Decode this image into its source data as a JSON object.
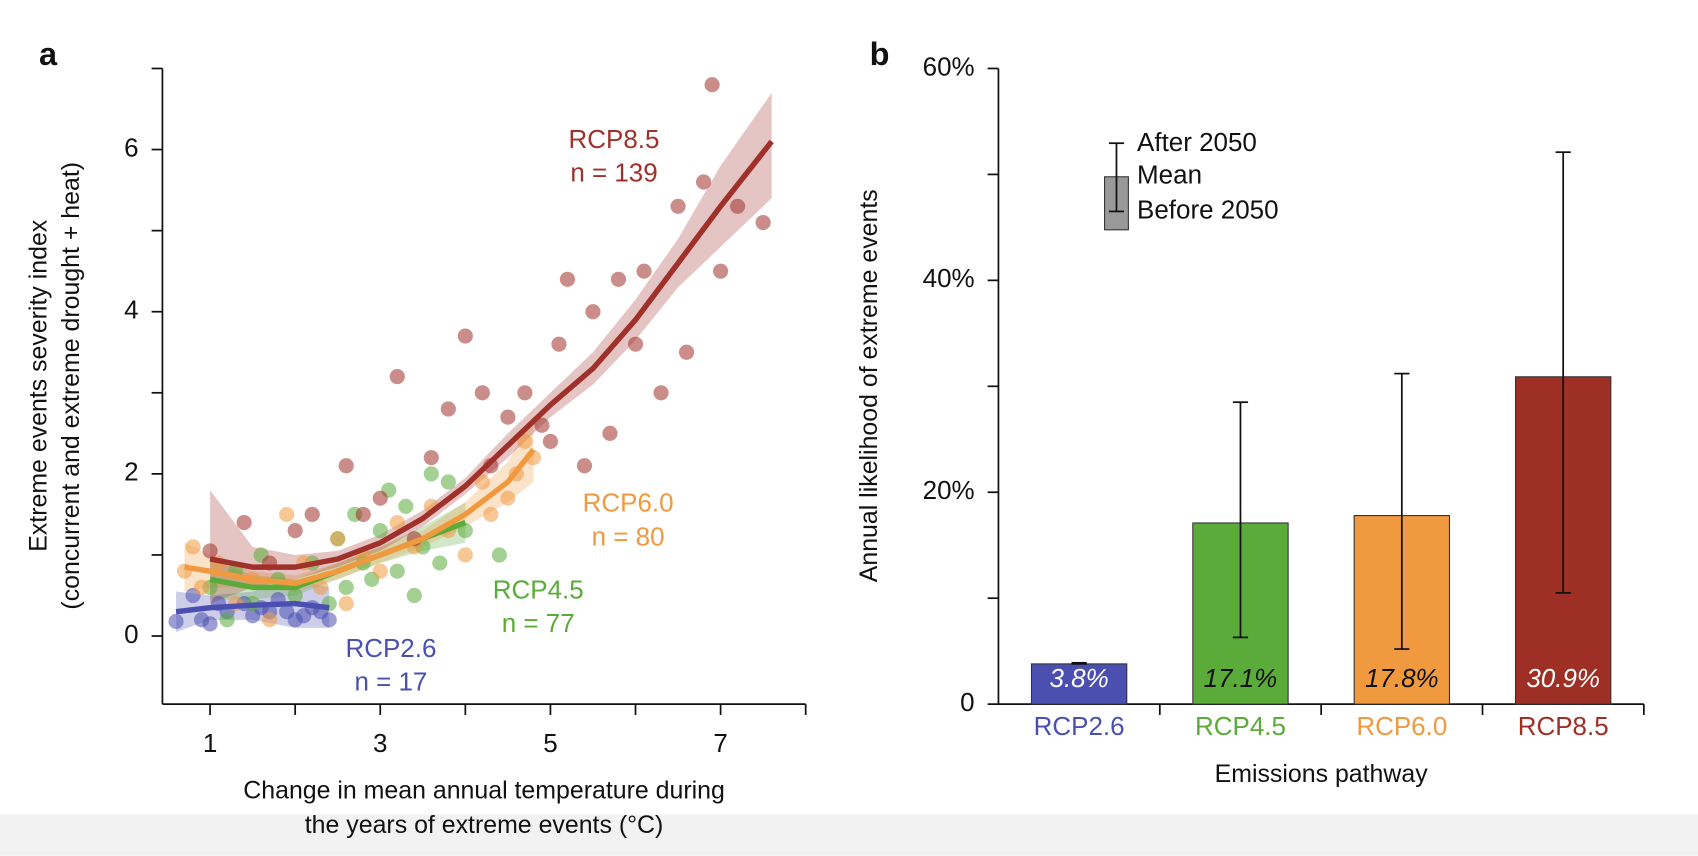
{
  "chart_data": [
    {
      "type": "scatter",
      "panel": "a",
      "xlabel": [
        "Change in mean annual temperature during",
        "the years of extreme events (°C)"
      ],
      "ylabel": [
        "Extreme events severity index",
        "(concurrent and extreme drought + heat)"
      ],
      "xlim": [
        0.44,
        8
      ],
      "xticks": [
        1,
        3,
        5,
        7
      ],
      "xticks_minor": [
        2,
        4,
        6,
        8
      ],
      "ylim": [
        -0.84,
        7
      ],
      "yticks": [
        0,
        2,
        4,
        6
      ],
      "yticks_minor": [
        1,
        3,
        5,
        7
      ],
      "series": [
        {
          "name": "RCP2.6",
          "n_label": "n = 17",
          "color": "#4a4fb0",
          "x": [
            0.6,
            0.8,
            0.9,
            1.0,
            1.2,
            1.4,
            1.6,
            1.8,
            1.9,
            2.0,
            2.1,
            2.2,
            2.3,
            1.1,
            1.5,
            1.7,
            2.4
          ],
          "y": [
            0.18,
            0.5,
            0.2,
            0.15,
            0.3,
            0.4,
            0.35,
            0.45,
            0.3,
            0.2,
            0.25,
            0.35,
            0.3,
            0.4,
            0.25,
            0.3,
            0.2
          ],
          "fit_x": [
            0.6,
            1.0,
            1.5,
            2.0,
            2.4
          ],
          "fit_y": [
            0.3,
            0.35,
            0.38,
            0.4,
            0.35
          ],
          "band_lower": [
            0.05,
            0.2,
            0.2,
            0.1,
            0.1
          ],
          "band_upper": [
            0.55,
            0.5,
            0.55,
            0.7,
            0.6
          ]
        },
        {
          "name": "RCP4.5",
          "n_label": "n = 77",
          "color": "#5aab3a",
          "x": [
            1.0,
            1.2,
            1.3,
            1.5,
            1.6,
            1.8,
            2.0,
            2.2,
            2.4,
            2.5,
            2.6,
            2.7,
            2.8,
            2.9,
            3.0,
            3.1,
            3.2,
            3.3,
            3.4,
            3.5,
            3.6,
            3.7,
            3.8,
            4.0,
            4.4
          ],
          "y": [
            0.6,
            0.2,
            0.8,
            0.4,
            1.0,
            0.7,
            0.5,
            0.9,
            0.4,
            1.2,
            0.6,
            1.5,
            0.9,
            0.7,
            1.3,
            1.8,
            0.8,
            1.6,
            0.5,
            1.1,
            2.0,
            0.9,
            1.9,
            1.3,
            1.0
          ],
          "fit_x": [
            1,
            1.5,
            2,
            2.5,
            3,
            3.5,
            4
          ],
          "fit_y": [
            0.7,
            0.6,
            0.6,
            0.8,
            1.0,
            1.2,
            1.4
          ],
          "band_lower": [
            0.45,
            0.45,
            0.5,
            0.7,
            0.9,
            1.05,
            1.15
          ],
          "band_upper": [
            0.95,
            0.75,
            0.7,
            0.9,
            1.1,
            1.35,
            1.65
          ]
        },
        {
          "name": "RCP6.0",
          "n_label": "n = 80",
          "color": "#f0993f",
          "x": [
            0.7,
            0.8,
            0.9,
            1.1,
            1.3,
            1.5,
            1.7,
            1.9,
            2.1,
            2.3,
            2.5,
            2.6,
            2.8,
            3.0,
            3.2,
            3.4,
            3.6,
            3.8,
            4.0,
            4.2,
            4.3,
            4.5,
            4.6,
            4.7,
            4.8
          ],
          "y": [
            0.8,
            1.1,
            0.6,
            0.9,
            0.4,
            0.7,
            0.2,
            1.5,
            0.9,
            0.6,
            1.2,
            0.4,
            1.0,
            0.8,
            1.4,
            1.1,
            1.6,
            1.3,
            1.0,
            1.9,
            1.5,
            1.7,
            2.0,
            2.4,
            2.2
          ],
          "fit_x": [
            0.7,
            1,
            1.5,
            2,
            2.5,
            3,
            3.5,
            4,
            4.5,
            4.8
          ],
          "fit_y": [
            0.85,
            0.8,
            0.7,
            0.65,
            0.8,
            1.0,
            1.2,
            1.5,
            1.9,
            2.3
          ],
          "band_lower": [
            0.55,
            0.6,
            0.6,
            0.55,
            0.7,
            0.9,
            1.1,
            1.35,
            1.65,
            1.9
          ],
          "band_upper": [
            1.15,
            1.0,
            0.8,
            0.75,
            0.9,
            1.1,
            1.3,
            1.65,
            2.15,
            2.7
          ]
        },
        {
          "name": "RCP8.5",
          "n_label": "n = 139",
          "color": "#a0302a",
          "x": [
            1.0,
            1.4,
            1.7,
            2.0,
            2.2,
            2.6,
            2.8,
            3.0,
            3.2,
            3.4,
            3.6,
            3.8,
            4.0,
            4.2,
            4.3,
            4.5,
            4.7,
            4.9,
            5.0,
            5.1,
            5.2,
            5.4,
            5.5,
            5.7,
            5.8,
            6.0,
            6.1,
            6.3,
            6.5,
            6.6,
            6.8,
            6.9,
            7.0,
            7.2,
            7.5
          ],
          "y": [
            1.05,
            1.4,
            0.9,
            1.3,
            1.5,
            2.1,
            1.5,
            1.7,
            3.2,
            1.2,
            2.2,
            2.8,
            3.7,
            3.0,
            2.1,
            2.7,
            3.0,
            2.6,
            2.4,
            3.6,
            4.4,
            2.1,
            4.0,
            2.5,
            4.4,
            3.6,
            4.5,
            3.0,
            5.3,
            3.5,
            5.6,
            6.8,
            4.5,
            5.3,
            5.1
          ],
          "fit_x": [
            1,
            1.5,
            2,
            2.5,
            3,
            3.5,
            4,
            4.5,
            5,
            5.5,
            6,
            6.5,
            7,
            7.6
          ],
          "fit_y": [
            0.95,
            0.85,
            0.85,
            0.95,
            1.15,
            1.45,
            1.85,
            2.35,
            2.85,
            3.3,
            3.9,
            4.6,
            5.3,
            6.1
          ],
          "band_lower": [
            0.4,
            0.6,
            0.7,
            0.85,
            1.05,
            1.35,
            1.75,
            2.2,
            2.7,
            3.1,
            3.65,
            4.3,
            4.8,
            5.4
          ],
          "band_upper": [
            1.8,
            1.1,
            1.0,
            1.05,
            1.25,
            1.55,
            1.95,
            2.5,
            3.0,
            3.5,
            4.15,
            4.9,
            5.8,
            6.7
          ]
        }
      ]
    },
    {
      "type": "bar",
      "panel": "b",
      "xlabel": "Emissions pathway",
      "ylabel": "Annual likelihood of extreme events",
      "ylim": [
        0,
        60
      ],
      "yticks": [
        0,
        {
          "value": 20,
          "label": "20%"
        },
        {
          "value": 40,
          "label": "40%"
        },
        {
          "value": 60,
          "label": "60%"
        }
      ],
      "yticks_minor": [
        10,
        30,
        50
      ],
      "categories": [
        "RCP2.6",
        "RCP4.5",
        "RCP6.0",
        "RCP8.5"
      ],
      "colors": [
        "#4a4fb0",
        "#5aab3a",
        "#f0993f",
        "#9e2f25"
      ],
      "values": [
        3.8,
        17.1,
        17.8,
        30.9
      ],
      "value_labels": [
        "3.8%",
        "17.1%",
        "17.8%",
        "30.9%"
      ],
      "error_low": [
        3.8,
        6.3,
        5.2,
        10.5
      ],
      "error_high": [
        3.9,
        28.5,
        31.2,
        52.1
      ],
      "legend": {
        "upper": "After 2050",
        "middle": "Mean",
        "lower": "Before 2050"
      }
    }
  ]
}
